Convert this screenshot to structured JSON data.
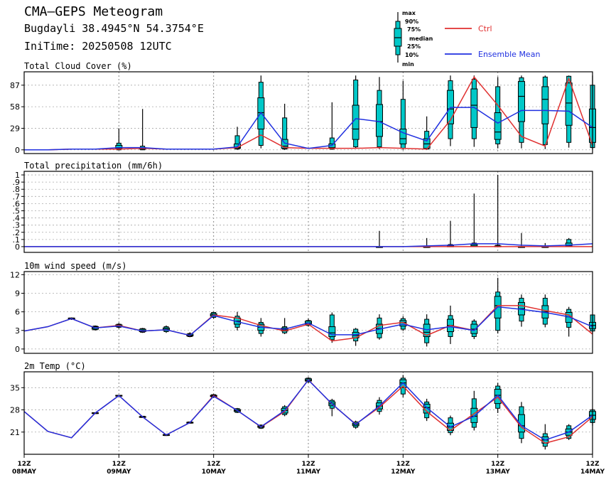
{
  "header": {
    "title": "CMA—GEPS Meteogram",
    "location": "Bugdayli 38.4945°N 54.3754°E",
    "init_time": "IniTime: 20250508 12UTC"
  },
  "legend": {
    "box_labels": [
      "max",
      "90%",
      "75%",
      "median",
      "25%",
      "10%",
      "min"
    ],
    "ctrl_label": "Ctrl",
    "mean_label": "Ensemble Mean",
    "colors": {
      "ctrl": "#e03030",
      "mean": "#2030e0",
      "box": "#00c8c8"
    }
  },
  "x_axis": {
    "ticks": [
      {
        "hour": 0,
        "l1": "12Z",
        "l2": "08MAY"
      },
      {
        "hour": 24,
        "l1": "12Z",
        "l2": "09MAY"
      },
      {
        "hour": 48,
        "l1": "12Z",
        "l2": "10MAY"
      },
      {
        "hour": 72,
        "l1": "12Z",
        "l2": "11MAY"
      },
      {
        "hour": 96,
        "l1": "12Z",
        "l2": "12MAY"
      },
      {
        "hour": 120,
        "l1": "12Z",
        "l2": "13MAY"
      },
      {
        "hour": 144,
        "l1": "12Z",
        "l2": "14MAY"
      }
    ]
  },
  "chart_data": [
    {
      "type": "box",
      "title": "Total Cloud Cover (%)",
      "yticks": [
        0,
        29,
        58,
        87
      ],
      "ylim": [
        -5,
        105
      ],
      "grid": true,
      "x_hours": [
        0,
        6,
        12,
        18,
        24,
        30,
        36,
        42,
        48,
        54,
        60,
        66,
        72,
        78,
        84,
        90,
        96,
        102,
        108,
        114,
        120,
        126,
        132,
        138,
        144
      ],
      "ctrl": [
        0,
        0,
        1,
        1,
        1,
        2,
        1,
        1,
        1,
        3,
        20,
        3,
        2,
        2,
        2,
        3,
        2,
        1,
        40,
        98,
        60,
        18,
        5,
        96,
        6
      ],
      "mean": [
        0,
        0,
        1,
        1,
        3,
        3,
        1,
        1,
        1,
        4,
        50,
        9,
        2,
        6,
        42,
        38,
        23,
        12,
        57,
        57,
        36,
        53,
        53,
        52,
        30
      ],
      "boxes": [
        {
          "h": 24,
          "min": 0,
          "p10": 0,
          "p25": 1,
          "med": 2,
          "p75": 6,
          "p90": 9,
          "max": 29
        },
        {
          "h": 30,
          "min": 0,
          "p10": 0,
          "p25": 1,
          "med": 2,
          "p75": 3,
          "p90": 5,
          "max": 55
        },
        {
          "h": 54,
          "min": 0,
          "p10": 1,
          "p25": 2,
          "med": 3,
          "p75": 8,
          "p90": 19,
          "max": 31
        },
        {
          "h": 60,
          "min": 2,
          "p10": 6,
          "p25": 28,
          "med": 50,
          "p75": 70,
          "p90": 91,
          "max": 100
        },
        {
          "h": 66,
          "min": 0,
          "p10": 1,
          "p25": 2,
          "med": 5,
          "p75": 14,
          "p90": 43,
          "max": 62
        },
        {
          "h": 78,
          "min": 0,
          "p10": 1,
          "p25": 2,
          "med": 3,
          "p75": 8,
          "p90": 16,
          "max": 64
        },
        {
          "h": 84,
          "min": 2,
          "p10": 4,
          "p25": 14,
          "med": 28,
          "p75": 60,
          "p90": 94,
          "max": 100
        },
        {
          "h": 90,
          "min": 1,
          "p10": 4,
          "p25": 18,
          "med": 38,
          "p75": 61,
          "p90": 80,
          "max": 98
        },
        {
          "h": 96,
          "min": 0,
          "p10": 2,
          "p25": 8,
          "med": 15,
          "p75": 28,
          "p90": 68,
          "max": 93
        },
        {
          "h": 102,
          "min": 0,
          "p10": 1,
          "p25": 2,
          "med": 8,
          "p75": 15,
          "p90": 25,
          "max": 45
        },
        {
          "h": 108,
          "min": 5,
          "p10": 15,
          "p25": 35,
          "med": 55,
          "p75": 80,
          "p90": 93,
          "max": 100
        },
        {
          "h": 114,
          "min": 4,
          "p10": 15,
          "p25": 30,
          "med": 60,
          "p75": 82,
          "p90": 95,
          "max": 100
        },
        {
          "h": 120,
          "min": 2,
          "p10": 8,
          "p25": 14,
          "med": 24,
          "p75": 50,
          "p90": 85,
          "max": 98
        },
        {
          "h": 126,
          "min": 2,
          "p10": 10,
          "p25": 38,
          "med": 72,
          "p75": 92,
          "p90": 97,
          "max": 100
        },
        {
          "h": 132,
          "min": 1,
          "p10": 7,
          "p25": 35,
          "med": 68,
          "p75": 85,
          "p90": 98,
          "max": 100
        },
        {
          "h": 138,
          "min": 3,
          "p10": 10,
          "p25": 33,
          "med": 63,
          "p75": 90,
          "p90": 99,
          "max": 100
        },
        {
          "h": 144,
          "min": 0,
          "p10": 3,
          "p25": 10,
          "med": 30,
          "p75": 55,
          "p90": 87,
          "max": 100
        }
      ]
    },
    {
      "type": "box",
      "title": "Total precipitation (mm/6h)",
      "yticks": [
        0,
        0.1,
        0.2,
        0.3,
        0.4,
        0.5,
        0.6,
        0.7,
        0.8,
        0.9,
        1
      ],
      "ylim": [
        -0.08,
        1.05
      ],
      "grid": true,
      "x_hours": [
        0,
        6,
        12,
        18,
        24,
        30,
        36,
        42,
        48,
        54,
        60,
        66,
        72,
        78,
        84,
        90,
        96,
        102,
        108,
        114,
        120,
        126,
        132,
        138,
        144
      ],
      "ctrl": [
        0,
        0,
        0,
        0,
        0,
        0,
        0,
        0,
        0,
        0,
        0,
        0,
        0,
        0,
        0,
        0,
        0,
        0,
        0,
        0,
        0,
        0,
        0,
        0,
        0
      ],
      "mean": [
        0,
        0,
        0,
        0,
        0,
        0,
        0,
        0,
        0,
        0,
        0,
        0,
        0,
        0,
        0,
        0,
        0,
        0.01,
        0.02,
        0.04,
        0.04,
        0.02,
        0.01,
        0.02,
        0.04
      ],
      "boxes": [
        {
          "h": 90,
          "min": 0,
          "p10": 0,
          "p25": 0,
          "med": 0,
          "p75": 0,
          "p90": 0,
          "max": 0.22
        },
        {
          "h": 102,
          "min": 0,
          "p10": 0,
          "p25": 0,
          "med": 0,
          "p75": 0,
          "p90": 0,
          "max": 0.12
        },
        {
          "h": 108,
          "min": 0,
          "p10": 0,
          "p25": 0,
          "med": 0,
          "p75": 0.01,
          "p90": 0.03,
          "max": 0.36
        },
        {
          "h": 114,
          "min": 0,
          "p10": 0,
          "p25": 0,
          "med": 0.01,
          "p75": 0.03,
          "p90": 0.05,
          "max": 0.74
        },
        {
          "h": 120,
          "min": 0,
          "p10": 0,
          "p25": 0,
          "med": 0,
          "p75": 0.01,
          "p90": 0.02,
          "max": 1.0
        },
        {
          "h": 126,
          "min": 0,
          "p10": 0,
          "p25": 0,
          "med": 0,
          "p75": 0,
          "p90": 0,
          "max": 0.19
        },
        {
          "h": 132,
          "min": 0,
          "p10": 0,
          "p25": 0,
          "med": 0,
          "p75": 0,
          "p90": 0,
          "max": 0.05
        },
        {
          "h": 138,
          "min": 0,
          "p10": 0,
          "p25": 0,
          "med": 0.01,
          "p75": 0.05,
          "p90": 0.1,
          "max": 0.12
        }
      ]
    },
    {
      "type": "box",
      "title": "10m wind speed (m/s)",
      "yticks": [
        0,
        3,
        6,
        9,
        12
      ],
      "ylim": [
        -0.7,
        12.5
      ],
      "grid": true,
      "x_hours": [
        0,
        6,
        12,
        18,
        24,
        30,
        36,
        42,
        48,
        54,
        60,
        66,
        72,
        78,
        84,
        90,
        96,
        102,
        108,
        114,
        120,
        126,
        132,
        138,
        144
      ],
      "ctrl": [
        2.9,
        3.6,
        4.9,
        3.4,
        3.8,
        2.9,
        3.1,
        2.2,
        5.5,
        5.0,
        3.8,
        2.9,
        4.0,
        1.3,
        1.8,
        3.8,
        4.3,
        2.2,
        3.8,
        3.0,
        7.0,
        7.0,
        6.2,
        5.5,
        2.4
      ],
      "mean": [
        2.9,
        3.6,
        4.9,
        3.4,
        3.7,
        2.9,
        3.1,
        2.2,
        5.4,
        4.4,
        3.5,
        3.2,
        4.2,
        2.3,
        2.3,
        3.2,
        4.0,
        3.1,
        3.6,
        3.0,
        6.8,
        6.4,
        5.9,
        5.2,
        3.6
      ],
      "boxes": [
        {
          "h": 12,
          "min": 4.7,
          "p10": 4.8,
          "p25": 4.8,
          "med": 4.9,
          "p75": 5.0,
          "p90": 5.0,
          "max": 5.1
        },
        {
          "h": 18,
          "min": 3.0,
          "p10": 3.1,
          "p25": 3.2,
          "med": 3.4,
          "p75": 3.6,
          "p90": 3.7,
          "max": 3.8
        },
        {
          "h": 24,
          "min": 3.3,
          "p10": 3.5,
          "p25": 3.6,
          "med": 3.7,
          "p75": 3.9,
          "p90": 4.0,
          "max": 4.2
        },
        {
          "h": 30,
          "min": 2.6,
          "p10": 2.7,
          "p25": 2.8,
          "med": 3.0,
          "p75": 3.2,
          "p90": 3.3,
          "max": 3.4
        },
        {
          "h": 36,
          "min": 2.6,
          "p10": 2.8,
          "p25": 3.0,
          "med": 3.2,
          "p75": 3.4,
          "p90": 3.6,
          "max": 3.8
        },
        {
          "h": 42,
          "min": 1.9,
          "p10": 2.0,
          "p25": 2.1,
          "med": 2.2,
          "p75": 2.4,
          "p90": 2.5,
          "max": 2.7
        },
        {
          "h": 48,
          "min": 4.9,
          "p10": 5.1,
          "p25": 5.3,
          "med": 5.5,
          "p75": 5.7,
          "p90": 5.9,
          "max": 6.0
        },
        {
          "h": 54,
          "min": 3.0,
          "p10": 3.5,
          "p25": 4.0,
          "med": 4.5,
          "p75": 5.0,
          "p90": 5.3,
          "max": 6.0
        },
        {
          "h": 60,
          "min": 2.0,
          "p10": 2.5,
          "p25": 3.0,
          "med": 3.5,
          "p75": 4.0,
          "p90": 4.3,
          "max": 5.0
        },
        {
          "h": 66,
          "min": 2.4,
          "p10": 2.6,
          "p25": 2.9,
          "med": 3.1,
          "p75": 3.4,
          "p90": 3.6,
          "max": 5.0
        },
        {
          "h": 72,
          "min": 3.6,
          "p10": 3.8,
          "p25": 4.0,
          "med": 4.2,
          "p75": 4.5,
          "p90": 4.6,
          "max": 4.9
        },
        {
          "h": 78,
          "min": 1.0,
          "p10": 1.5,
          "p25": 2.0,
          "med": 2.6,
          "p75": 3.6,
          "p90": 5.5,
          "max": 5.9
        },
        {
          "h": 84,
          "min": 0.5,
          "p10": 1.3,
          "p25": 1.8,
          "med": 2.2,
          "p75": 2.7,
          "p90": 3.2,
          "max": 3.4
        },
        {
          "h": 90,
          "min": 1.5,
          "p10": 1.8,
          "p25": 2.5,
          "med": 3.3,
          "p75": 4.0,
          "p90": 5.0,
          "max": 5.6
        },
        {
          "h": 96,
          "min": 2.9,
          "p10": 3.2,
          "p25": 3.7,
          "med": 4.3,
          "p75": 4.6,
          "p90": 4.9,
          "max": 5.3
        },
        {
          "h": 102,
          "min": 0.4,
          "p10": 1.0,
          "p25": 2.0,
          "med": 2.7,
          "p75": 4.0,
          "p90": 4.8,
          "max": 5.6
        },
        {
          "h": 108,
          "min": 0.8,
          "p10": 2.0,
          "p25": 2.8,
          "med": 3.8,
          "p75": 4.8,
          "p90": 5.4,
          "max": 7.0
        },
        {
          "h": 114,
          "min": 1.6,
          "p10": 2.0,
          "p25": 2.5,
          "med": 3.2,
          "p75": 4.0,
          "p90": 4.5,
          "max": 4.8
        },
        {
          "h": 120,
          "min": 2.5,
          "p10": 3.0,
          "p25": 5.0,
          "med": 7.0,
          "p75": 8.5,
          "p90": 9.2,
          "max": 11.5
        },
        {
          "h": 126,
          "min": 3.6,
          "p10": 4.5,
          "p25": 5.5,
          "med": 6.5,
          "p75": 7.5,
          "p90": 8.2,
          "max": 8.8
        },
        {
          "h": 132,
          "min": 3.5,
          "p10": 4.0,
          "p25": 5.0,
          "med": 6.0,
          "p75": 7.0,
          "p90": 8.2,
          "max": 8.8
        },
        {
          "h": 138,
          "min": 2.0,
          "p10": 3.5,
          "p25": 4.3,
          "med": 5.2,
          "p75": 5.9,
          "p90": 6.4,
          "max": 6.8
        },
        {
          "h": 144,
          "min": 2.5,
          "p10": 2.9,
          "p25": 3.3,
          "med": 3.8,
          "p75": 4.3,
          "p90": 5.5,
          "max": 5.5
        }
      ]
    },
    {
      "type": "box",
      "title": "2m Temp (°C)",
      "yticks": [
        21,
        28,
        35
      ],
      "ylim": [
        14,
        40
      ],
      "grid": true,
      "x_hours": [
        0,
        6,
        12,
        18,
        24,
        30,
        36,
        42,
        48,
        54,
        60,
        66,
        72,
        78,
        84,
        90,
        96,
        102,
        108,
        114,
        120,
        126,
        132,
        138,
        144
      ],
      "ctrl": [
        27.5,
        21.2,
        19.2,
        27.0,
        32.5,
        25.8,
        20.1,
        24.0,
        32.5,
        27.8,
        22.6,
        27.5,
        37.5,
        29.8,
        23.5,
        28.8,
        35.5,
        27.5,
        21.5,
        26.8,
        32.0,
        22.5,
        17.5,
        19.5,
        25.8
      ],
      "mean": [
        27.5,
        21.2,
        19.2,
        27.0,
        32.5,
        25.8,
        20.1,
        24.0,
        32.3,
        27.8,
        22.7,
        27.8,
        37.4,
        29.9,
        23.4,
        29.2,
        36.5,
        28.7,
        22.6,
        26.0,
        32.6,
        23.0,
        18.5,
        21.0,
        26.3
      ],
      "boxes": [
        {
          "h": 18,
          "min": 26.8,
          "p10": 26.9,
          "p25": 26.9,
          "med": 27.0,
          "p75": 27.1,
          "p90": 27.1,
          "max": 27.2
        },
        {
          "h": 24,
          "min": 32.3,
          "p10": 32.4,
          "p25": 32.4,
          "med": 32.5,
          "p75": 32.6,
          "p90": 32.6,
          "max": 32.7
        },
        {
          "h": 30,
          "min": 25.5,
          "p10": 25.6,
          "p25": 25.7,
          "med": 25.8,
          "p75": 25.9,
          "p90": 26.0,
          "max": 26.1
        },
        {
          "h": 36,
          "min": 19.8,
          "p10": 19.9,
          "p25": 20.0,
          "med": 20.1,
          "p75": 20.2,
          "p90": 20.3,
          "max": 20.4
        },
        {
          "h": 42,
          "min": 23.7,
          "p10": 23.8,
          "p25": 23.9,
          "med": 24.0,
          "p75": 24.1,
          "p90": 24.2,
          "max": 24.3
        },
        {
          "h": 48,
          "min": 31.8,
          "p10": 32.0,
          "p25": 32.2,
          "med": 32.4,
          "p75": 32.6,
          "p90": 32.8,
          "max": 33.0
        },
        {
          "h": 54,
          "min": 27.0,
          "p10": 27.2,
          "p25": 27.5,
          "med": 27.8,
          "p75": 28.1,
          "p90": 28.4,
          "max": 28.6
        },
        {
          "h": 60,
          "min": 22.0,
          "p10": 22.2,
          "p25": 22.5,
          "med": 22.7,
          "p75": 23.0,
          "p90": 23.2,
          "max": 23.4
        },
        {
          "h": 66,
          "min": 26.0,
          "p10": 26.5,
          "p25": 27.0,
          "med": 27.8,
          "p75": 28.5,
          "p90": 29.0,
          "max": 29.5
        },
        {
          "h": 72,
          "min": 36.5,
          "p10": 36.8,
          "p25": 37.1,
          "med": 37.4,
          "p75": 37.8,
          "p90": 38.0,
          "max": 38.3
        },
        {
          "h": 78,
          "min": 26.0,
          "p10": 28.5,
          "p25": 29.3,
          "med": 29.9,
          "p75": 30.5,
          "p90": 31.0,
          "max": 31.5
        },
        {
          "h": 84,
          "min": 22.0,
          "p10": 22.5,
          "p25": 23.0,
          "med": 23.4,
          "p75": 23.8,
          "p90": 24.2,
          "max": 24.6
        },
        {
          "h": 90,
          "min": 26.5,
          "p10": 27.5,
          "p25": 28.3,
          "med": 29.2,
          "p75": 30.2,
          "p90": 31.0,
          "max": 32.0
        },
        {
          "h": 96,
          "min": 32.0,
          "p10": 33.0,
          "p25": 35.0,
          "med": 36.5,
          "p75": 37.5,
          "p90": 38.0,
          "max": 39.0
        },
        {
          "h": 102,
          "min": 24.5,
          "p10": 25.5,
          "p25": 27.0,
          "med": 28.7,
          "p75": 29.8,
          "p90": 30.5,
          "max": 31.5
        },
        {
          "h": 108,
          "min": 20.0,
          "p10": 20.8,
          "p25": 21.5,
          "med": 22.6,
          "p75": 23.8,
          "p90": 25.5,
          "max": 26.2
        },
        {
          "h": 114,
          "min": 21.5,
          "p10": 22.5,
          "p25": 24.0,
          "med": 26.0,
          "p75": 28.5,
          "p90": 31.5,
          "max": 34.0
        },
        {
          "h": 120,
          "min": 27.0,
          "p10": 28.5,
          "p25": 30.0,
          "med": 32.6,
          "p75": 34.5,
          "p90": 35.5,
          "max": 36.5
        },
        {
          "h": 126,
          "min": 17.5,
          "p10": 19.0,
          "p25": 21.0,
          "med": 23.0,
          "p75": 26.5,
          "p90": 29.0,
          "max": 30.5
        },
        {
          "h": 132,
          "min": 15.5,
          "p10": 16.5,
          "p25": 17.5,
          "med": 18.5,
          "p75": 19.5,
          "p90": 20.5,
          "max": 23.5
        },
        {
          "h": 138,
          "min": 18.5,
          "p10": 19.0,
          "p25": 20.0,
          "med": 21.0,
          "p75": 22.0,
          "p90": 23.0,
          "max": 23.5
        },
        {
          "h": 144,
          "min": 23.0,
          "p10": 24.0,
          "p25": 25.0,
          "med": 26.3,
          "p75": 27.5,
          "p90": 28.0,
          "max": 28.5
        }
      ]
    }
  ]
}
